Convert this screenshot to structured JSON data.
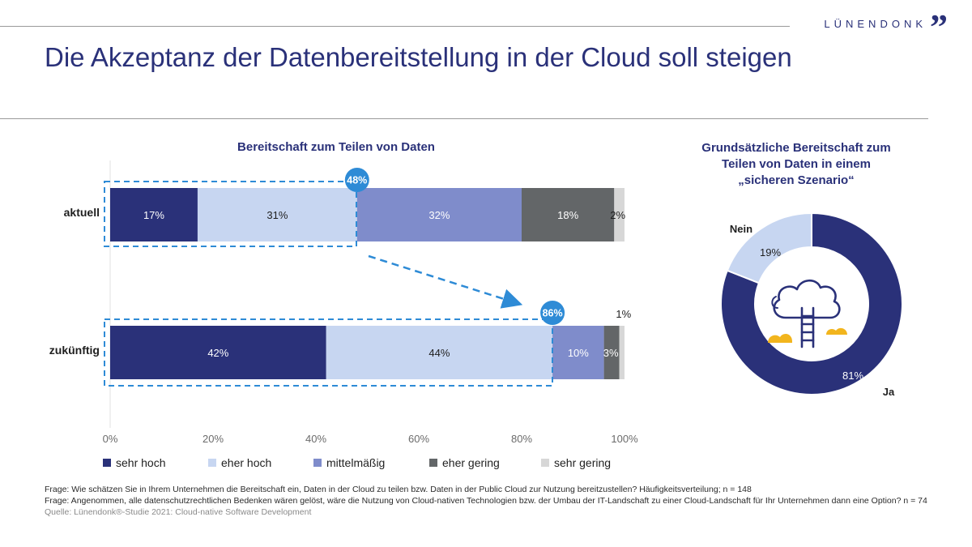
{
  "header": {
    "title": "Die Akzeptanz der Datenbereitstellung in der Cloud soll steigen",
    "logo_text": "LÜNENDONK",
    "logo_mark": "”"
  },
  "chart_data": [
    {
      "type": "bar",
      "orientation": "horizontal-stacked",
      "title": "Bereitschaft zum Teilen von Daten",
      "categories": [
        "aktuell",
        "zukünftig"
      ],
      "series": [
        {
          "name": "sehr hoch",
          "color": "#2a3179",
          "values": [
            17,
            42
          ],
          "labels": [
            "17%",
            "42%"
          ]
        },
        {
          "name": "eher hoch",
          "color": "#c7d6f1",
          "values": [
            31,
            44
          ],
          "labels": [
            "31%",
            "44%"
          ]
        },
        {
          "name": "mittelmäßig",
          "color": "#7f8ccb",
          "values": [
            32,
            10
          ],
          "labels": [
            "32%",
            "10%"
          ]
        },
        {
          "name": "eher gering",
          "color": "#636668",
          "values": [
            18,
            3
          ],
          "labels": [
            "18%",
            "3%"
          ]
        },
        {
          "name": "sehr gering",
          "color": "#d7d7d7",
          "values": [
            2,
            1
          ],
          "labels": [
            "2%",
            "1%"
          ]
        }
      ],
      "xlim": [
        0,
        100
      ],
      "xticks": [
        "0%",
        "20%",
        "40%",
        "60%",
        "80%",
        "100%"
      ],
      "annotations": [
        {
          "category": "aktuell",
          "value": 48,
          "label": "48%"
        },
        {
          "category": "zukünftig",
          "value": 86,
          "label": "86%"
        }
      ],
      "legend_position": "bottom"
    },
    {
      "type": "pie",
      "style": "donut",
      "title_lines": [
        "Grundsätzliche Bereitschaft zum",
        "Teilen von Daten in einem",
        "„sicheren Szenario“"
      ],
      "slices": [
        {
          "name": "Ja",
          "value": 81,
          "label": "81%",
          "color": "#2a3179"
        },
        {
          "name": "Nein",
          "value": 19,
          "label": "19%",
          "color": "#c7d6f1"
        }
      ]
    }
  ],
  "footnotes": {
    "line1": "Frage: Wie schätzen Sie in Ihrem Unternehmen die Bereitschaft ein, Daten in der Cloud zu teilen bzw. Daten in der Public Cloud zur Nutzung bereitzustellen? Häufigkeitsverteilung; n = 148",
    "line2": "Frage: Angenommen, alle datenschutzrechtlichen Bedenken wären gelöst, wäre die Nutzung von Cloud-nativen Technologien bzw. der Umbau der IT-Landschaft zu einer Cloud-Landschaft für Ihr Unternehmen dann eine Option? n = 74",
    "source": "Quelle: Lünendonk®-Studie 2021: Cloud-native Software Development"
  },
  "colors": {
    "accent": "#2a3179",
    "highlight": "#2e8bd6",
    "icon_yellow": "#f2b51d"
  }
}
